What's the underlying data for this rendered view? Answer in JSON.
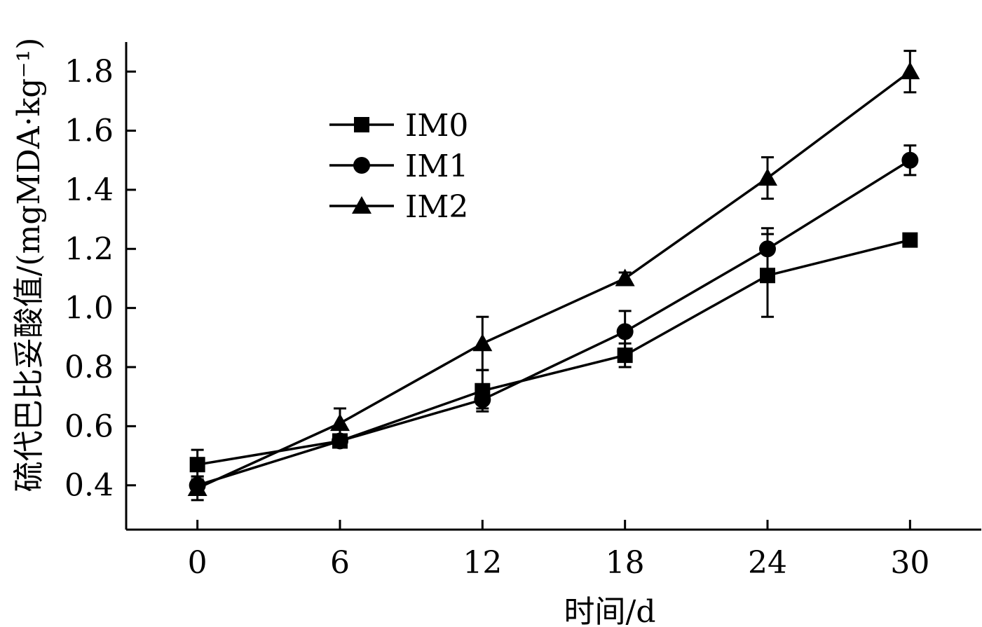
{
  "chart_data": {
    "type": "line",
    "title": "",
    "xlabel": "时间/d",
    "ylabel": "硫代巴比妥酸值/(mgMDA·kg⁻¹)",
    "x": [
      0,
      6,
      12,
      18,
      24,
      30
    ],
    "xlim": [
      -3,
      33
    ],
    "ylim": [
      0.25,
      1.9
    ],
    "yticks": [
      "0.4",
      "0.6",
      "0.8",
      "1.0",
      "1.2",
      "1.4",
      "1.6",
      "1.8"
    ],
    "xticks": [
      "0",
      "6",
      "12",
      "18",
      "24",
      "30"
    ],
    "legend_position": "top-left",
    "grid": false,
    "series": [
      {
        "name": "IM0",
        "marker": "square",
        "values": [
          0.47,
          0.55,
          0.72,
          0.84,
          1.11,
          1.23
        ],
        "errors": [
          0.05,
          0.02,
          0.07,
          0.04,
          0.14,
          0.02
        ]
      },
      {
        "name": "IM1",
        "marker": "circle",
        "values": [
          0.4,
          0.55,
          0.69,
          0.92,
          1.2,
          1.5
        ],
        "errors": [
          0.03,
          0.02,
          0.03,
          0.07,
          0.07,
          0.05
        ]
      },
      {
        "name": "IM2",
        "marker": "triangle",
        "values": [
          0.39,
          0.61,
          0.88,
          1.1,
          1.44,
          1.8
        ],
        "errors": [
          0.04,
          0.05,
          0.09,
          0.02,
          0.07,
          0.07
        ]
      }
    ]
  }
}
